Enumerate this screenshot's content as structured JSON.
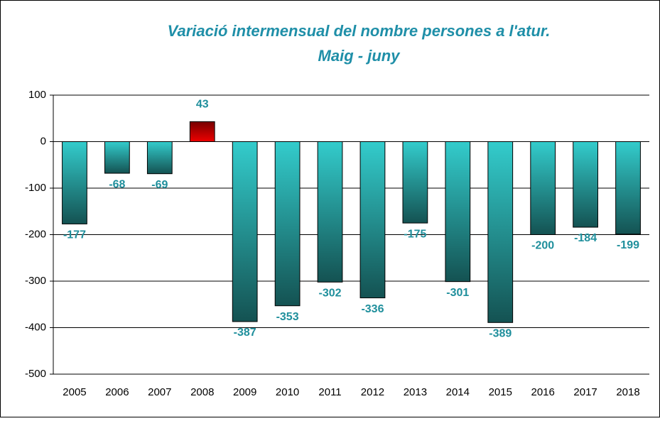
{
  "chart_data": {
    "type": "bar",
    "title": "Variació intermensual del nombre persones a l'atur.",
    "subtitle": "Maig - juny",
    "categories": [
      "2005",
      "2006",
      "2007",
      "2008",
      "2009",
      "2010",
      "2011",
      "2012",
      "2013",
      "2014",
      "2015",
      "2016",
      "2017",
      "2018"
    ],
    "values": [
      -177,
      -68,
      -69,
      43,
      -387,
      -353,
      -302,
      -336,
      -175,
      -301,
      -389,
      -200,
      -184,
      -199
    ],
    "colors": [
      "#33cccc",
      "#33cccc",
      "#33cccc",
      "#ee0000",
      "#33cccc",
      "#33cccc",
      "#33cccc",
      "#33cccc",
      "#33cccc",
      "#33cccc",
      "#33cccc",
      "#33cccc",
      "#33cccc",
      "#33cccc"
    ],
    "ylim": [
      -500,
      100
    ],
    "yticks": [
      -500,
      -400,
      -300,
      -200,
      -100,
      0,
      100
    ],
    "grid": true
  }
}
